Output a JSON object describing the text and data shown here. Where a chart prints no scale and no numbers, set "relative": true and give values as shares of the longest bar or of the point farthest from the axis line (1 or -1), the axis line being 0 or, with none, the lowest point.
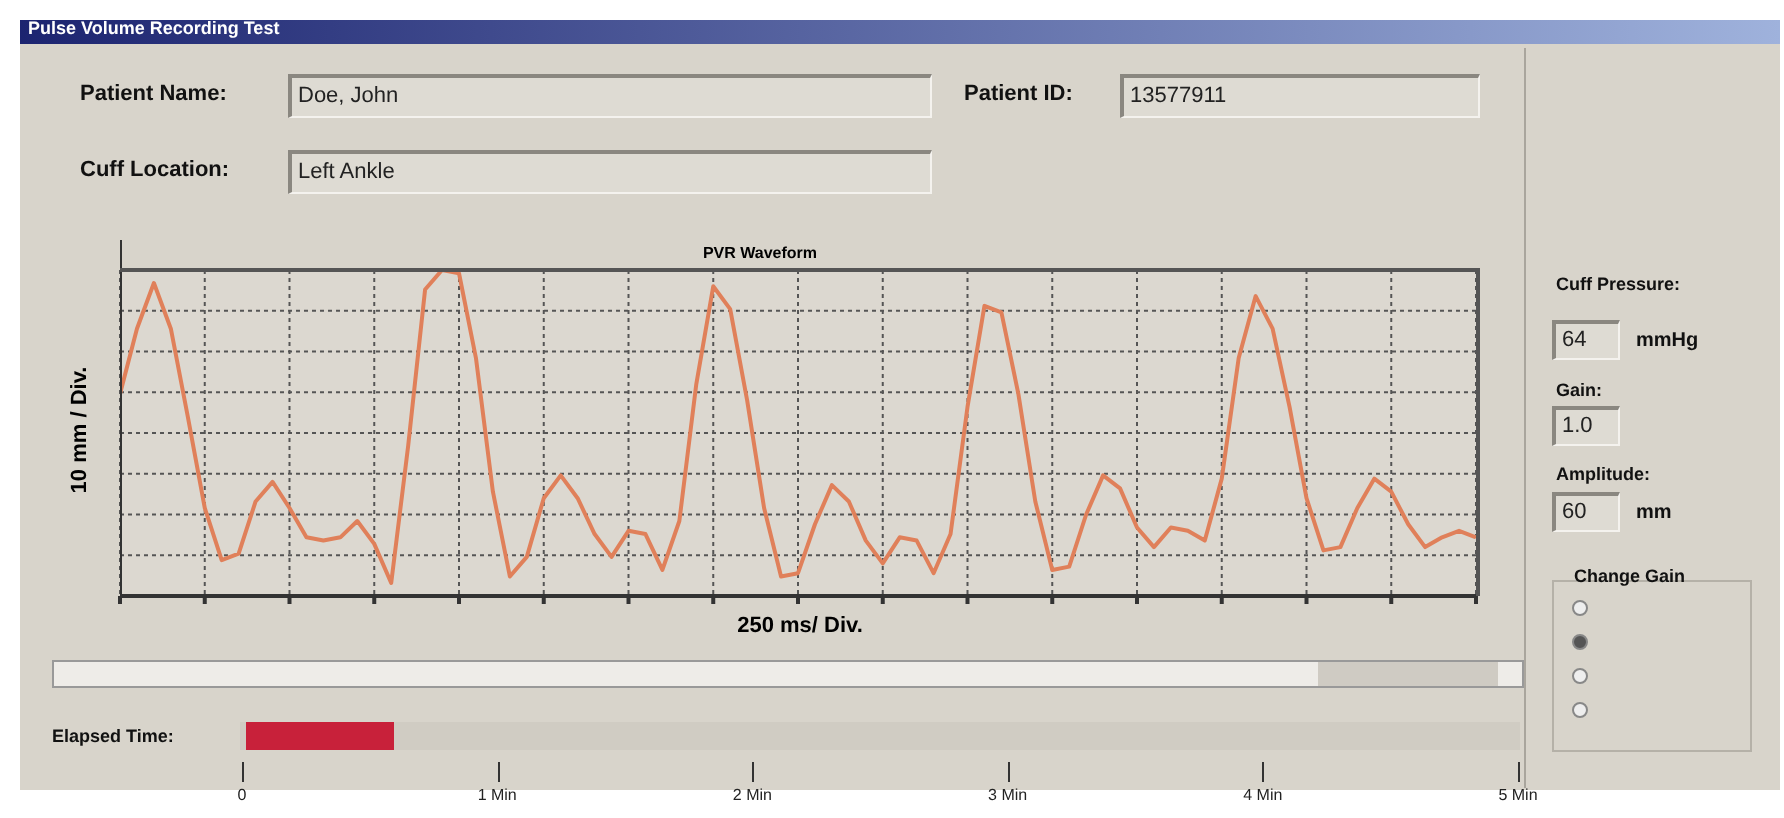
{
  "chart_data": {
    "type": "line",
    "title": "PVR Waveform",
    "xlabel": "250 ms/ Div.",
    "ylabel": "10 mm / Div.",
    "relative": true,
    "grid": true,
    "marker": "none",
    "line_style": "solid",
    "categories": [
      null,
      null,
      null,
      null,
      null,
      null,
      null,
      null,
      null,
      null,
      null,
      null,
      null,
      null,
      null,
      null,
      null,
      null,
      null,
      null,
      null,
      null,
      null,
      null,
      null,
      null,
      null,
      null,
      null,
      null,
      null,
      null,
      null,
      null,
      null,
      null,
      null,
      null,
      null,
      null,
      null,
      null,
      null,
      null,
      null,
      null,
      null,
      null,
      null,
      null,
      null,
      null,
      null,
      null,
      null,
      null,
      null,
      null,
      null,
      null,
      null,
      null,
      null,
      null,
      null,
      null,
      null,
      null,
      null,
      null,
      null,
      null,
      null,
      null,
      null,
      null,
      null,
      null,
      null,
      null,
      null
    ],
    "series": [
      {
        "color": "#e0805a",
        "values": [
          0.62,
          0.82,
          0.96,
          0.82,
          0.55,
          0.27,
          0.11,
          0.13,
          0.29,
          0.35,
          0.27,
          0.18,
          0.17,
          0.18,
          0.23,
          0.16,
          0.04,
          0.46,
          0.94,
          1.0,
          0.99,
          0.73,
          0.32,
          0.06,
          0.12,
          0.3,
          0.37,
          0.3,
          0.19,
          0.12,
          0.2,
          0.19,
          0.08,
          0.23,
          0.65,
          0.95,
          0.88,
          0.6,
          0.27,
          0.06,
          0.07,
          0.22,
          0.34,
          0.29,
          0.17,
          0.1,
          0.18,
          0.17,
          0.07,
          0.19,
          0.58,
          0.89,
          0.87,
          0.62,
          0.29,
          0.08,
          0.09,
          0.25,
          0.37,
          0.33,
          0.21,
          0.15,
          0.21,
          0.2,
          0.17,
          0.36,
          0.73,
          0.92,
          0.82,
          0.58,
          0.3,
          0.14,
          0.15,
          0.27,
          0.36,
          0.32,
          0.22,
          0.15,
          0.18,
          0.2,
          0.18
        ]
      }
    ],
    "annotations": [
      "Pulse Volume Recording Test",
      "Patient Name:",
      "Doe, John",
      "Patient ID:",
      "13577911",
      "Cuff Location:",
      "Left Ankle",
      "Cuff Pressure:",
      "64",
      "mmHg",
      "Gain:",
      "1.0",
      "Amplitude:",
      "60",
      "mm",
      "Change Gain",
      "Elapsed Time:",
      "0",
      "1 Min",
      "2 Min",
      "3 Min",
      "4 Min",
      "5 Min"
    ]
  }
}
